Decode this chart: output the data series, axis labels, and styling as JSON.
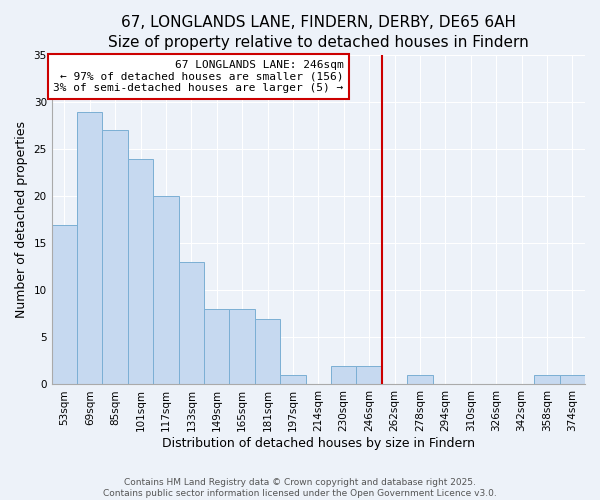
{
  "title": "67, LONGLANDS LANE, FINDERN, DERBY, DE65 6AH",
  "subtitle": "Size of property relative to detached houses in Findern",
  "xlabel": "Distribution of detached houses by size in Findern",
  "ylabel": "Number of detached properties",
  "bar_labels": [
    "53sqm",
    "69sqm",
    "85sqm",
    "101sqm",
    "117sqm",
    "133sqm",
    "149sqm",
    "165sqm",
    "181sqm",
    "197sqm",
    "214sqm",
    "230sqm",
    "246sqm",
    "262sqm",
    "278sqm",
    "294sqm",
    "310sqm",
    "326sqm",
    "342sqm",
    "358sqm",
    "374sqm"
  ],
  "bar_values": [
    17,
    29,
    27,
    24,
    20,
    13,
    8,
    8,
    7,
    1,
    0,
    2,
    2,
    0,
    1,
    0,
    0,
    0,
    0,
    1,
    1
  ],
  "bar_color": "#c6d9f0",
  "bar_edge_color": "#7bafd4",
  "vline_color": "#cc0000",
  "annotation_title": "67 LONGLANDS LANE: 246sqm",
  "annotation_line1": "← 97% of detached houses are smaller (156)",
  "annotation_line2": "3% of semi-detached houses are larger (5) →",
  "annotation_box_color": "#ffffff",
  "annotation_box_edge": "#cc0000",
  "ylim": [
    0,
    35
  ],
  "yticks": [
    0,
    5,
    10,
    15,
    20,
    25,
    30,
    35
  ],
  "footer1": "Contains HM Land Registry data © Crown copyright and database right 2025.",
  "footer2": "Contains public sector information licensed under the Open Government Licence v3.0.",
  "background_color": "#edf2f9",
  "plot_background": "#edf2f9",
  "grid_color": "#ffffff",
  "title_fontsize": 11,
  "subtitle_fontsize": 9.5,
  "axis_label_fontsize": 9,
  "tick_fontsize": 7.5,
  "annotation_fontsize": 8,
  "footer_fontsize": 6.5
}
